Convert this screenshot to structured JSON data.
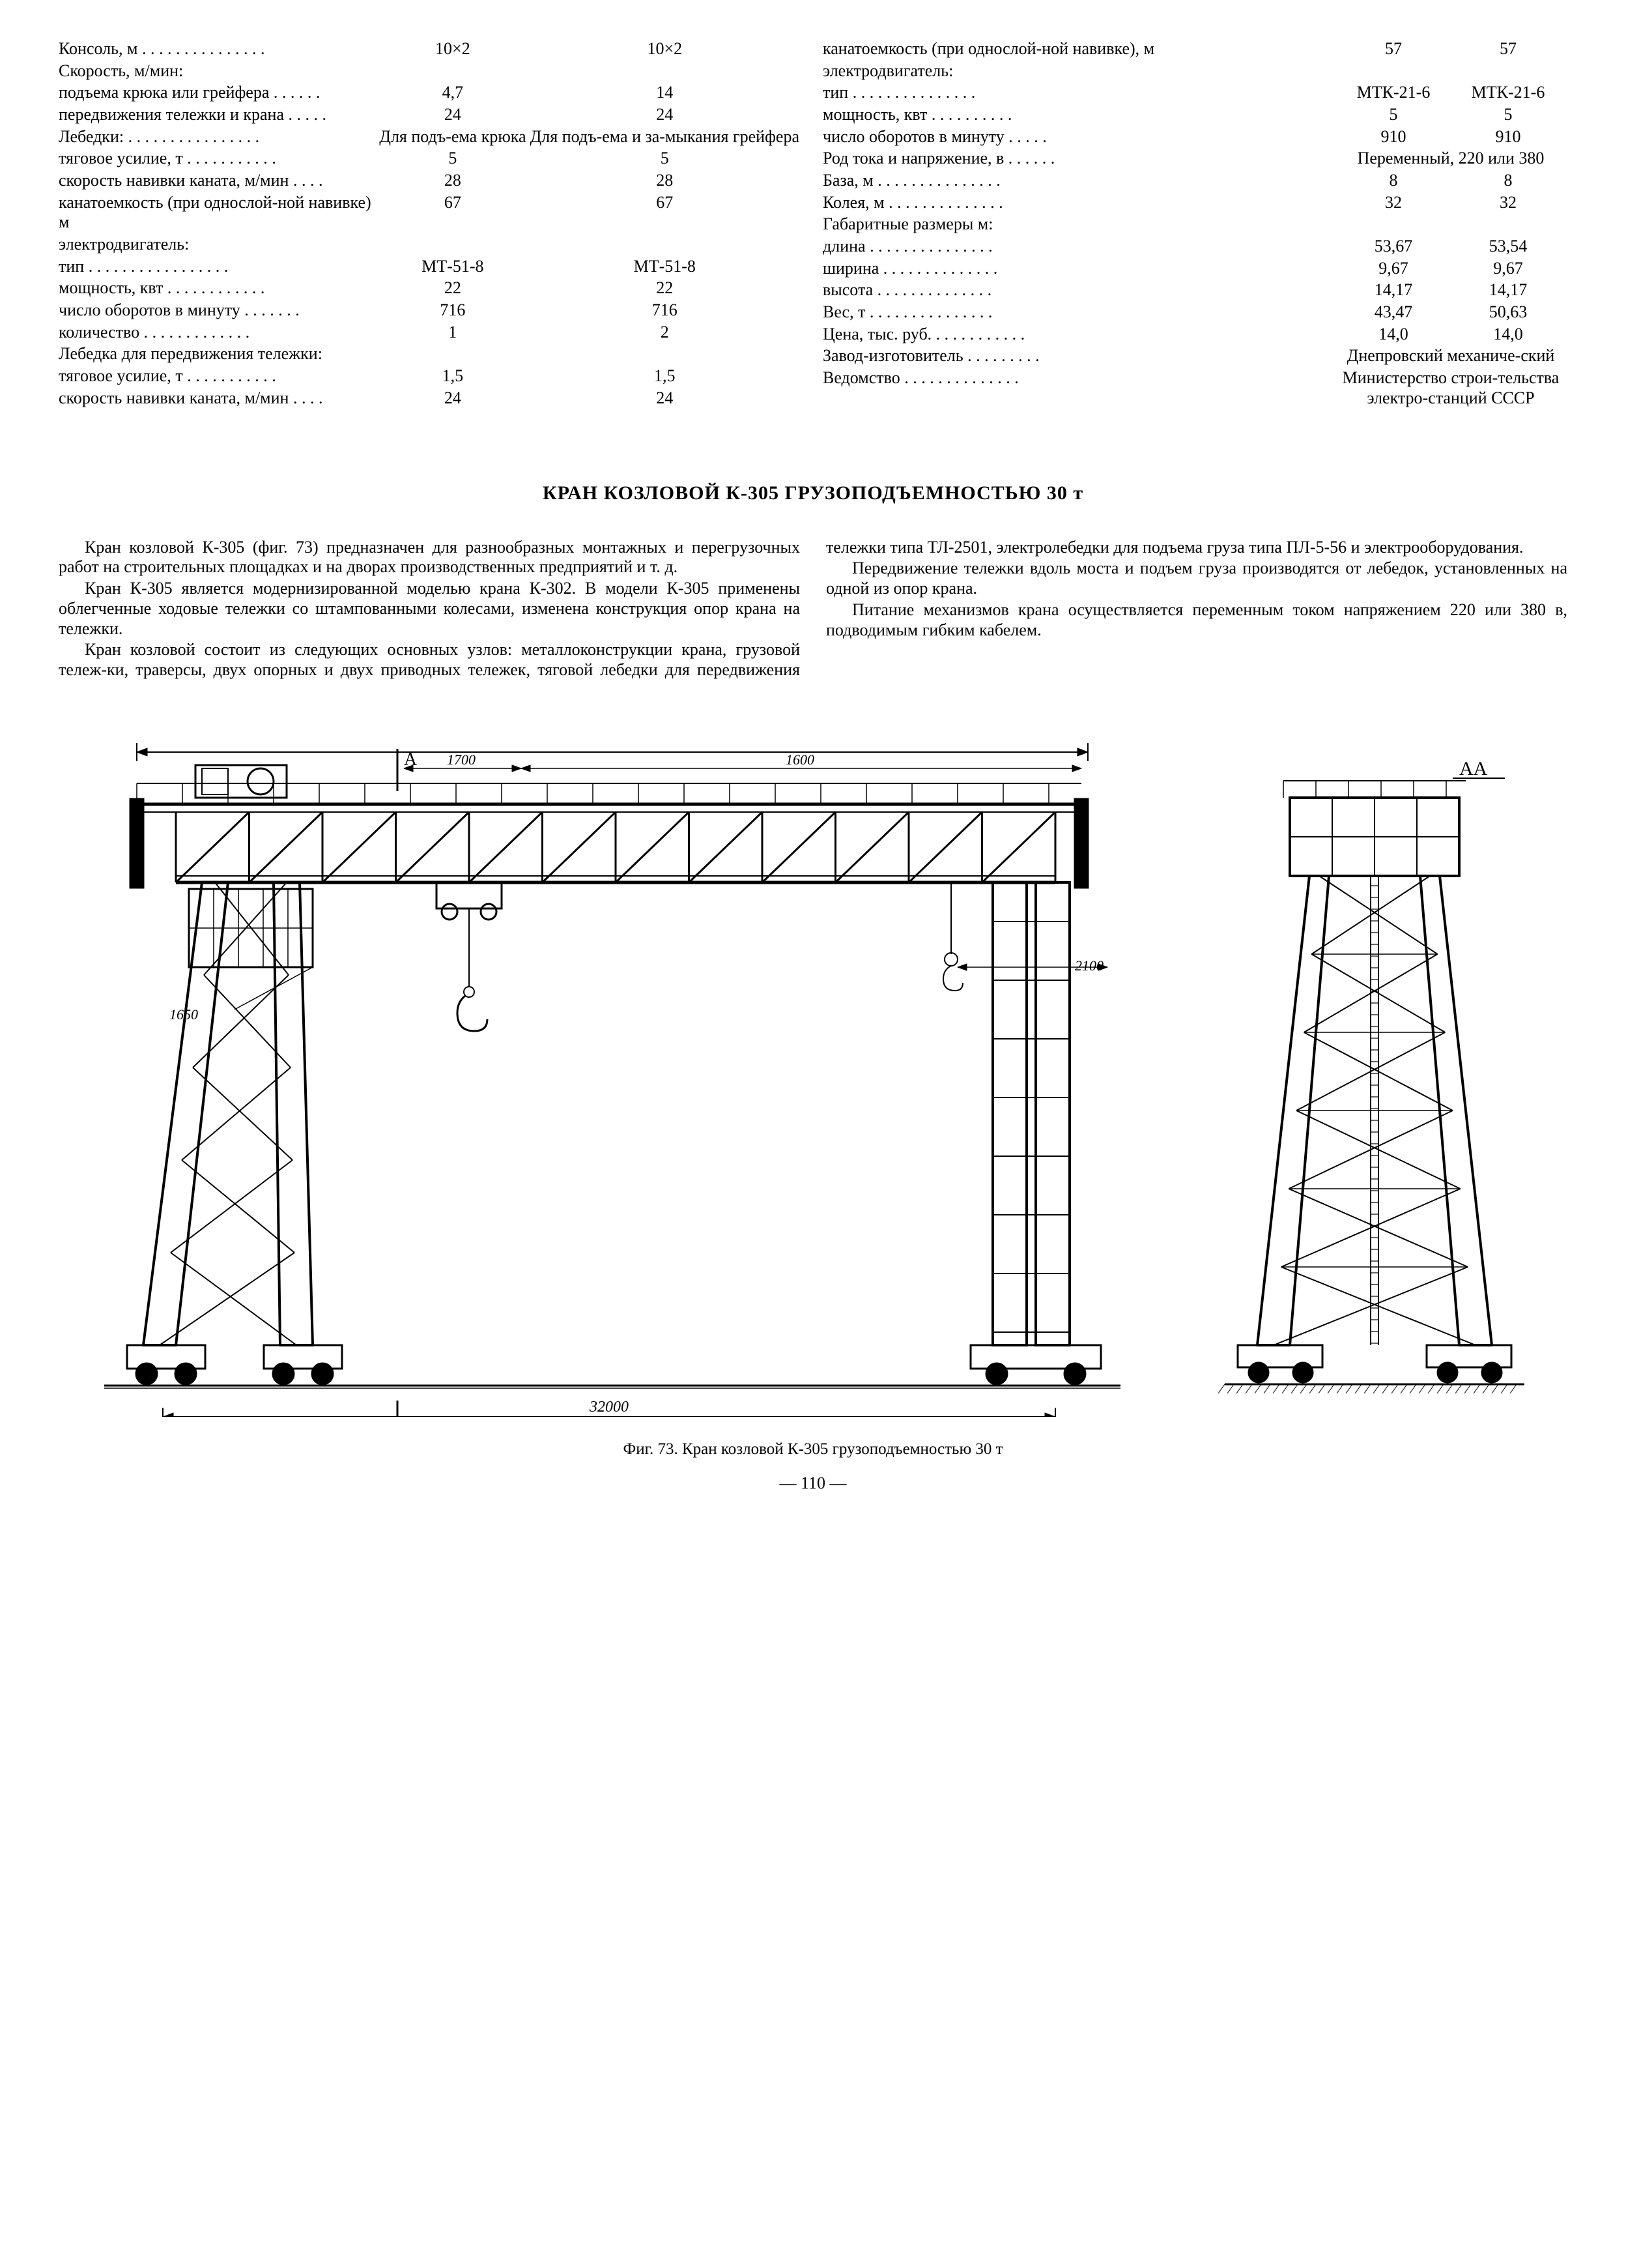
{
  "left_table": [
    {
      "level": 1,
      "label": "Консоль, м",
      "v1": "10×2",
      "v2": "10×2"
    },
    {
      "level": 1,
      "label": "Скорость, м/мин:",
      "v1": "",
      "v2": ""
    },
    {
      "level": 2,
      "label": "подъема крюка или грейфера",
      "v1": "4,7",
      "v2": "14"
    },
    {
      "level": 2,
      "label": "передвижения тележки и крана",
      "v1": "24",
      "v2": "24"
    },
    {
      "level": 1,
      "label": "Лебедки:",
      "v1": "Для подъ-ема крюка",
      "v2": "Для подъ-ема и за-мыкания грейфера"
    },
    {
      "level": 2,
      "label": "тяговое усилие, т",
      "v1": "5",
      "v2": "5"
    },
    {
      "level": 2,
      "label": "скорость навивки каната, м/мин",
      "v1": "28",
      "v2": "28"
    },
    {
      "level": 2,
      "label": "канатоемкость (при однослой-ной навивке) м",
      "v1": "67",
      "v2": "67"
    },
    {
      "level": 2,
      "label": "электродвигатель:",
      "v1": "",
      "v2": ""
    },
    {
      "level": 3,
      "label": "тип",
      "v1": "МТ-51-8",
      "v2": "МТ-51-8"
    },
    {
      "level": 3,
      "label": "мощность, квт",
      "v1": "22",
      "v2": "22"
    },
    {
      "level": 3,
      "label": "число оборотов в минуту",
      "v1": "716",
      "v2": "716"
    },
    {
      "level": 3,
      "label": "количество",
      "v1": "1",
      "v2": "2"
    },
    {
      "level": 1,
      "label": "Лебедка для передвижения тележки:",
      "v1": "",
      "v2": ""
    },
    {
      "level": 2,
      "label": "тяговое усилие, т",
      "v1": "1,5",
      "v2": "1,5"
    },
    {
      "level": 2,
      "label": "скорость навивки каната, м/мин",
      "v1": "24",
      "v2": "24"
    }
  ],
  "right_table": [
    {
      "level": 2,
      "label": "канатоемкость (при однослой-ной навивке), м",
      "v1": "57",
      "v2": "57"
    },
    {
      "level": 2,
      "label": "электродвигатель:",
      "v1": "",
      "v2": ""
    },
    {
      "level": 3,
      "label": "тип",
      "v1": "МТК-21-6",
      "v2": "МТК-21-6"
    },
    {
      "level": 3,
      "label": "мощность, квт",
      "v1": "5",
      "v2": "5"
    },
    {
      "level": 3,
      "label": "число оборотов в минуту",
      "v1": "910",
      "v2": "910"
    },
    {
      "level": 1,
      "label": "Род тока и напряжение, в",
      "span": "Переменный, 220 или 380"
    },
    {
      "level": 1,
      "label": "База, м",
      "v1": "8",
      "v2": "8"
    },
    {
      "level": 1,
      "label": "Колея, м",
      "v1": "32",
      "v2": "32"
    },
    {
      "level": 1,
      "label": "Габаритные размеры м:",
      "v1": "",
      "v2": ""
    },
    {
      "level": 2,
      "label": "длина",
      "v1": "53,67",
      "v2": "53,54"
    },
    {
      "level": 2,
      "label": "ширина",
      "v1": "9,67",
      "v2": "9,67"
    },
    {
      "level": 2,
      "label": "высота",
      "v1": "14,17",
      "v2": "14,17"
    },
    {
      "level": 1,
      "label": "Вес, т",
      "v1": "43,47",
      "v2": "50,63"
    },
    {
      "level": 1,
      "label": "Цена, тыс. руб.",
      "v1": "14,0",
      "v2": "14,0"
    },
    {
      "level": 1,
      "label": "Завод-изготовитель",
      "span": "Днепровский механиче-ский"
    },
    {
      "level": 1,
      "label": "Ведомство",
      "span": "Министерство строи-тельства электро-станций СССР"
    }
  ],
  "title": "КРАН КОЗЛОВОЙ К-305  ГРУЗОПОДЪЕМНОСТЬЮ 30 т",
  "paragraphs": [
    "Кран козловой К-305 (фиг. 73) предназначен для разнообразных монтажных и перегрузочных работ на строительных площадках и на дворах производственных предприятий и т. д.",
    "Кран К-305 является модернизированной моделью крана К-302. В модели К-305 применены облегченные ходовые тележки со штампованными колесами, изменена конструкция опор крана на тележки.",
    "Кран козловой состоит из следующих основных узлов: металлоконструкции крана, грузовой тележ-ки, траверсы, двух опорных и двух приводных тележек, тяговой лебедки для передвижения тележки типа ТЛ-2501, электролебедки для подъема груза типа ПЛ-5-56 и электрооборудования.",
    "Передвижение тележки вдоль моста и подъем груза производятся от лебедок, установленных на одной из опор крана.",
    "Питание механизмов крана осуществляется переменным током напряжением 220 или 380 в, подводимым гибким кабелем."
  ],
  "figure": {
    "caption": "Фиг. 73. Кран козловой К-305 грузоподъемностью 30 т",
    "labels": {
      "A": "А",
      "AL": "А",
      "AA": "АА",
      "d1700": "1700",
      "d1600": "1600",
      "d1650": "1650",
      "d2100": "2100",
      "d32000": "32000"
    },
    "colors": {
      "stroke": "#000000",
      "fill_hatch": "#000000",
      "bg": "#ffffff"
    }
  },
  "page_number": "— 110 —"
}
